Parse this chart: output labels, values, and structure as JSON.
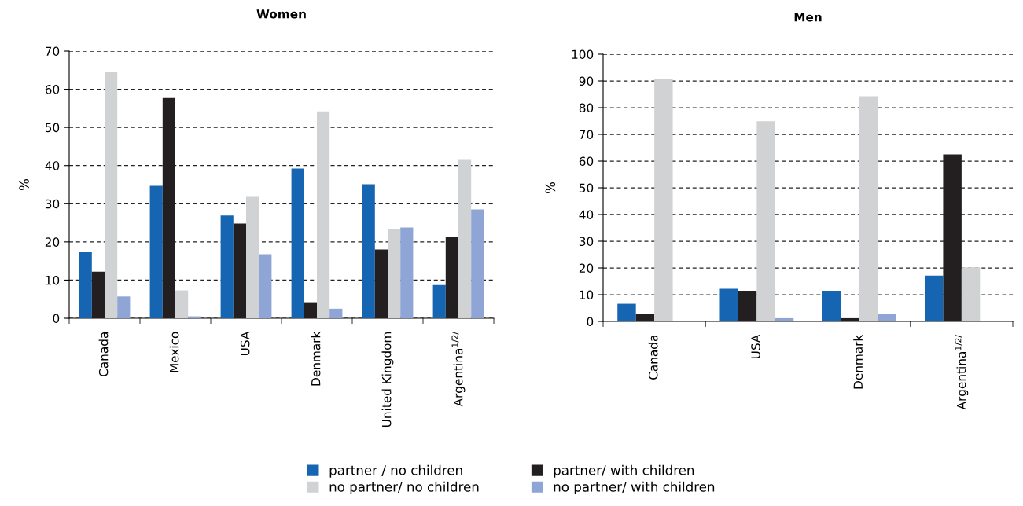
{
  "chart_data": [
    {
      "type": "bar",
      "title": "Women",
      "ylabel": "%",
      "categories": [
        "Canada",
        "Mexico",
        "USA",
        "Denmark",
        "United Kingdom",
        "Argentina$^{1/2/}$"
      ],
      "ylim": [
        0,
        70
      ],
      "yticks": [
        0,
        10,
        20,
        30,
        40,
        50,
        60,
        70
      ],
      "grid": "y",
      "legend": "bottom",
      "series": [
        {
          "name": "partner / no children",
          "color": "#1565b3",
          "values": [
            17.3,
            34.7,
            26.9,
            39.2,
            35.1,
            8.7
          ]
        },
        {
          "name": "partner/ with children",
          "color": "#231f20",
          "values": [
            12.2,
            57.7,
            24.8,
            4.2,
            18.0,
            21.3
          ]
        },
        {
          "name": "no partner/ no children",
          "color": "#d1d2d4",
          "values": [
            64.5,
            7.3,
            31.8,
            54.2,
            23.4,
            41.5
          ]
        },
        {
          "name": "no partner/ with children",
          "color": "#8ea5d5",
          "values": [
            5.7,
            0.5,
            16.8,
            2.5,
            23.8,
            28.5
          ]
        }
      ]
    },
    {
      "type": "bar",
      "title": "Men",
      "ylabel": "%",
      "categories": [
        "Canada",
        "USA",
        "Denmark",
        "Argentina$^{1/2/}$"
      ],
      "ylim": [
        0,
        100
      ],
      "yticks": [
        0,
        10,
        20,
        30,
        40,
        50,
        60,
        70,
        80,
        90,
        100
      ],
      "grid": "y",
      "series": [
        {
          "color": "#1565b3",
          "values": [
            6.6,
            12.2,
            11.5,
            17.1
          ]
        },
        {
          "color": "#231f20",
          "values": [
            2.7,
            11.5,
            1.2,
            62.5
          ]
        },
        {
          "color": "#d1d2d4",
          "values": [
            90.7,
            74.9,
            84.3,
            20.2
          ]
        },
        {
          "color": "#8ea5d5",
          "values": [
            0,
            1.2,
            2.7,
            0.3
          ]
        }
      ]
    }
  ]
}
